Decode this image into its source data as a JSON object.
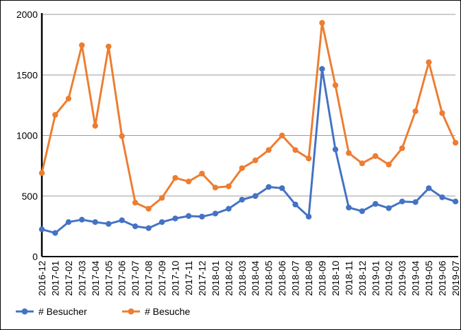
{
  "chart_data": {
    "type": "line",
    "x": [
      "2016-12",
      "2017-01",
      "2017-02",
      "2017-03",
      "2017-04",
      "2017-05",
      "2017-06",
      "2017-07",
      "2017-08",
      "2017-09",
      "2017-10",
      "2017-11",
      "2017-12",
      "2018-01",
      "2018-02",
      "2018-03",
      "2018-04",
      "2018-05",
      "2018-06",
      "2018-07",
      "2018-08",
      "2018-09",
      "2018-10",
      "2018-11",
      "2018-12",
      "2019-01",
      "2019-02",
      "2019-03",
      "2019-04",
      "2019-05",
      "2019-06",
      "2019-07"
    ],
    "series": [
      {
        "name": "# Besucher",
        "color": "#4472C4",
        "values": [
          225,
          195,
          285,
          305,
          285,
          270,
          300,
          250,
          235,
          285,
          315,
          335,
          330,
          355,
          395,
          470,
          500,
          575,
          565,
          430,
          330,
          1550,
          885,
          405,
          375,
          435,
          400,
          455,
          450,
          565,
          490,
          455
        ]
      },
      {
        "name": "# Besuche",
        "color": "#ED7D31",
        "values": [
          690,
          1170,
          1305,
          1745,
          1080,
          1735,
          995,
          445,
          395,
          485,
          650,
          620,
          685,
          570,
          580,
          730,
          795,
          880,
          1000,
          880,
          810,
          1930,
          1415,
          855,
          770,
          830,
          760,
          895,
          1200,
          1605,
          1185,
          940
        ]
      }
    ],
    "yticks": [
      "0",
      "500",
      "1000",
      "1500",
      "2000"
    ],
    "ylim": [
      0,
      2000
    ],
    "grid": true,
    "legend_position": "bottom-left"
  }
}
